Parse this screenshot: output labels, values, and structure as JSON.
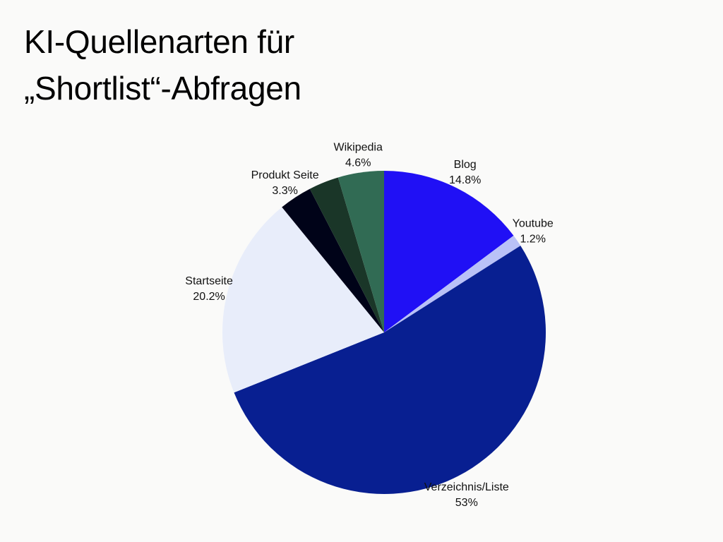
{
  "chart_data": {
    "type": "pie",
    "title_lines": [
      "KI-Quellenarten für",
      "„Shortlist“-Abfragen"
    ],
    "start_angle_deg": 0,
    "direction": "clockwise",
    "slices": [
      {
        "label": "Blog",
        "value_label": "14.8%",
        "value": 14.8,
        "color": "#2010f5"
      },
      {
        "label": "Youtube",
        "value_label": "1.2%",
        "value": 1.2,
        "color": "#b9c1f7"
      },
      {
        "label": "Verzeichnis/Liste",
        "value_label": "53%",
        "value": 53.0,
        "color": "#081f91"
      },
      {
        "label": "Startseite",
        "value_label": "20.2%",
        "value": 20.2,
        "color": "#e8edfa"
      },
      {
        "label": "Produkt Seite",
        "value_label": "3.3%",
        "value": 3.3,
        "color": "#000318"
      },
      {
        "label": "",
        "value_label": "",
        "value": 3.0,
        "color": "#1a3628"
      },
      {
        "label": "Wikipedia",
        "value_label": "4.6%",
        "value": 4.6,
        "color": "#316b54"
      }
    ]
  }
}
